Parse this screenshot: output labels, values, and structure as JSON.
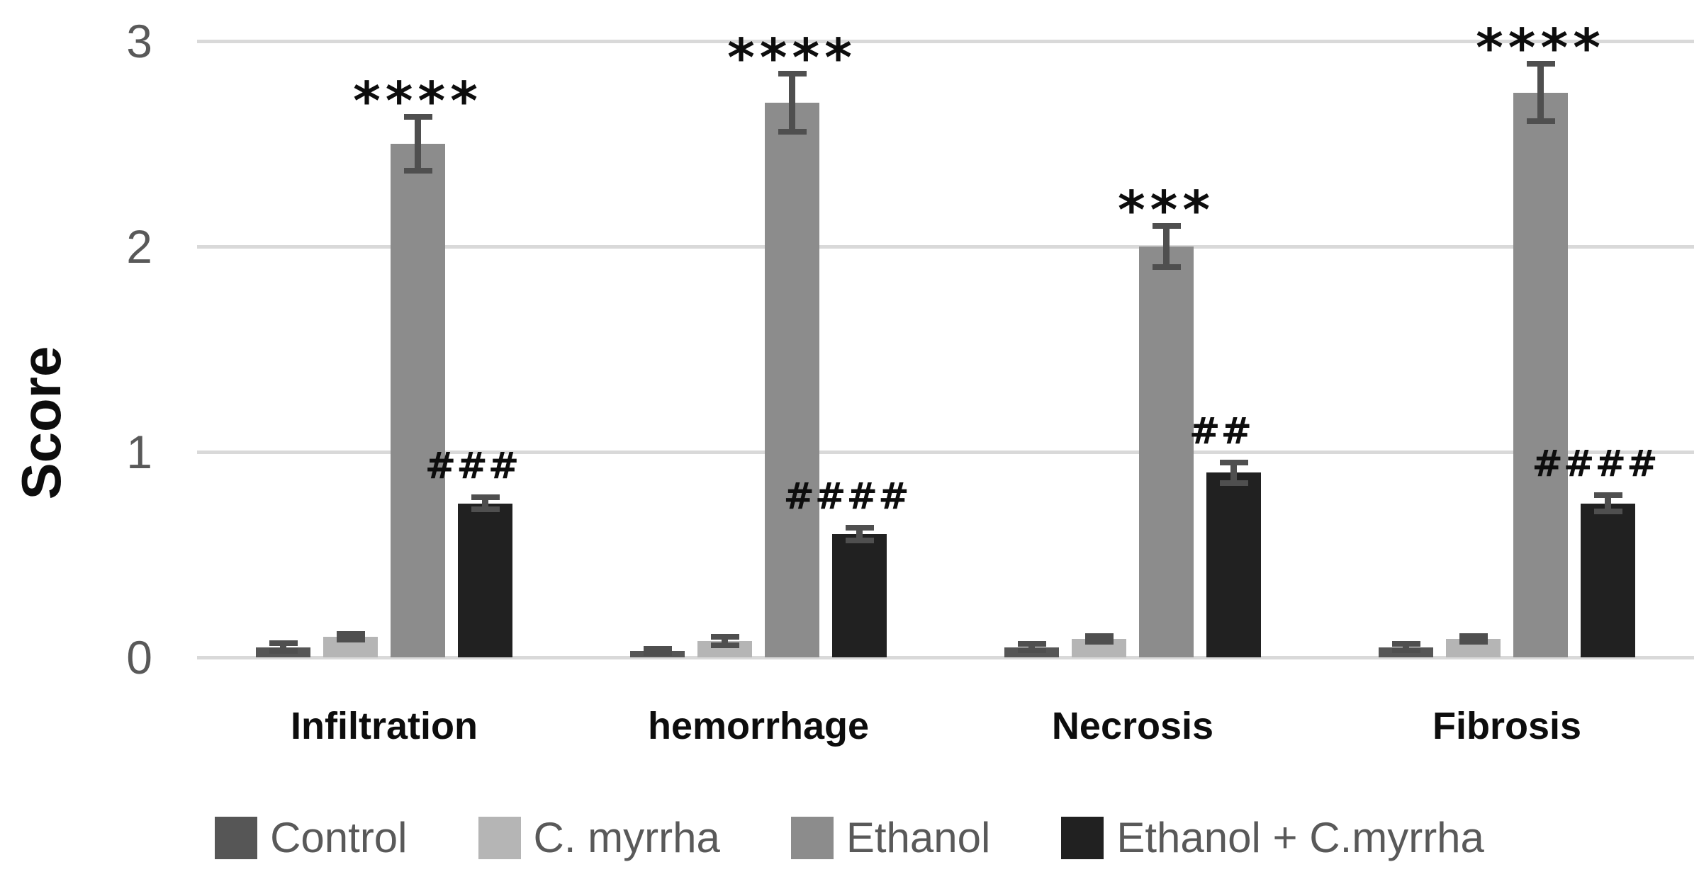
{
  "chart_data": {
    "type": "bar",
    "title": "",
    "ylabel": "Score",
    "xlabel": "",
    "categories": [
      "Infiltration",
      "hemorrhage",
      "Necrosis",
      "Fibrosis"
    ],
    "series": [
      {
        "name": "Control",
        "color": "#565656",
        "values": [
          0.05,
          0.03,
          0.05,
          0.05
        ],
        "errors": [
          0.02,
          0.01,
          0.015,
          0.015
        ]
      },
      {
        "name": "C. myrrha",
        "color": "#B5B5B5",
        "values": [
          0.1,
          0.08,
          0.09,
          0.09
        ],
        "errors": [
          0.015,
          0.02,
          0.015,
          0.015
        ]
      },
      {
        "name": "Ethanol",
        "color": "#8C8C8C",
        "values": [
          2.5,
          2.7,
          2.0,
          2.75
        ],
        "errors": [
          0.13,
          0.14,
          0.1,
          0.14
        ]
      },
      {
        "name": "Ethanol + C.myrrha",
        "color": "#212121",
        "values": [
          0.75,
          0.6,
          0.9,
          0.75
        ],
        "errors": [
          0.03,
          0.03,
          0.05,
          0.04
        ]
      }
    ],
    "annotations": {
      "ethanol_series": [
        "****",
        "****",
        "***",
        "****"
      ],
      "combo_series": [
        "###",
        "####",
        "##",
        "####"
      ]
    },
    "y_ticks": [
      "0",
      "1",
      "2",
      "3"
    ],
    "ylim": [
      0,
      3
    ],
    "grid": true,
    "legend_position": "bottom",
    "colors": {
      "gridline": "#D9D9D9",
      "error_bar": "#4F4F4F",
      "tick_label": "#595959",
      "legend_text": "#595959",
      "text": "#0D0D0D"
    }
  }
}
